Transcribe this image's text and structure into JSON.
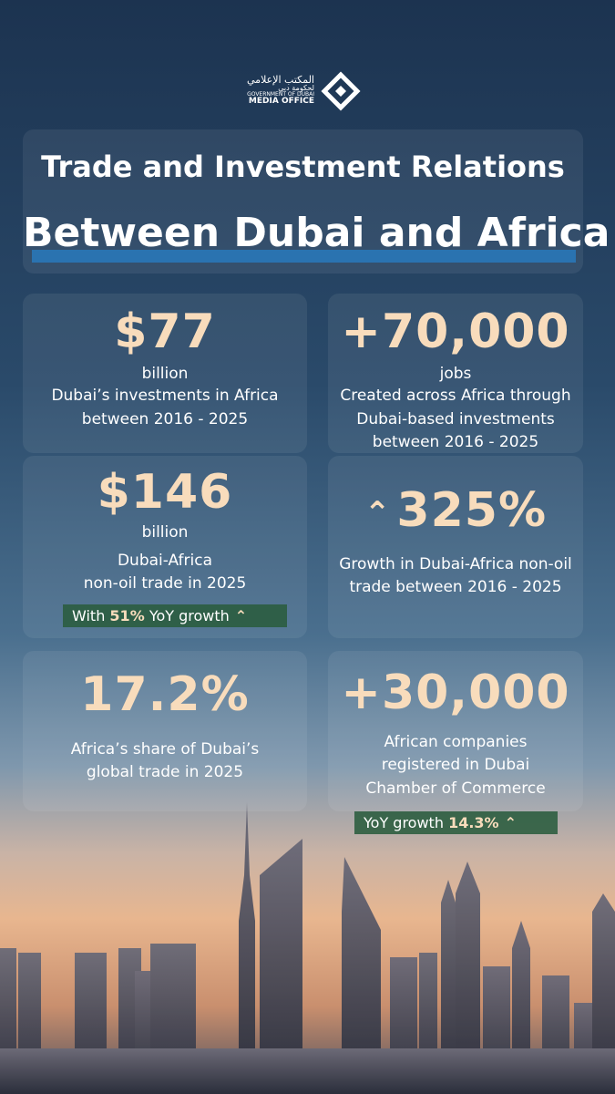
{
  "logo": {
    "arabic_1": "المكتب الإعلامي",
    "arabic_2": "لحكومة دبي",
    "english_1": "GOVERNMENT OF DUBAI",
    "english_2": "MEDIA OFFICE"
  },
  "title": {
    "line1": "Trade and Investment Relations",
    "line2": "Between Dubai and Africa"
  },
  "cards": [
    {
      "value": "$77",
      "unit": "billion",
      "lines": [
        "Dubai’s investments in Africa",
        "between 2016 - 2025"
      ]
    },
    {
      "value": "+70,000",
      "unit": "jobs",
      "lines": [
        "Created across Africa through",
        "Dubai-based investments",
        "between 2016 - 2025"
      ]
    },
    {
      "value": "$146",
      "unit": "billion",
      "lines": [
        "Dubai-Africa",
        "non-oil trade in 2025"
      ],
      "badge": {
        "before": "With",
        "highlight": "51%",
        "after": "YoY growth"
      }
    },
    {
      "value": "325%",
      "lines": [
        "Growth in Dubai-Africa non-oil",
        "trade between 2016 - 2025"
      ]
    },
    {
      "value": "17.2%",
      "lines": [
        "Africa’s share of Dubai’s",
        "global trade in 2025"
      ]
    },
    {
      "value": "+30,000",
      "lines": [
        "African companies",
        "registered in Dubai",
        "Chamber of Commerce"
      ],
      "badge": {
        "before": "YoY growth",
        "highlight": "14.3%"
      }
    }
  ]
}
